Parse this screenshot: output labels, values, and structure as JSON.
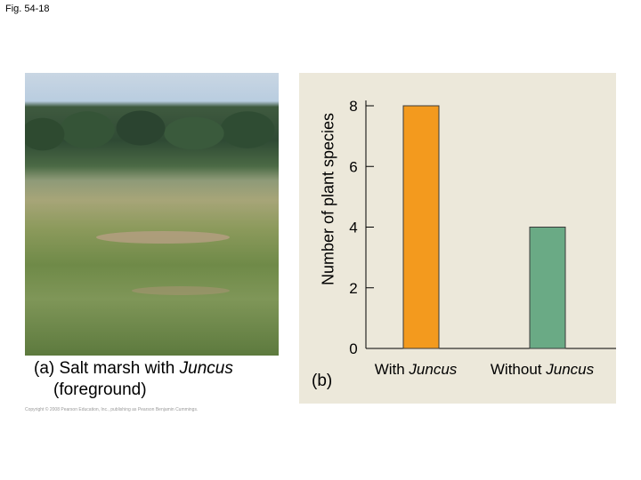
{
  "figure": {
    "label": "Fig. 54-18",
    "photo_caption_line1": "(a) Salt marsh with ",
    "photo_caption_italic": "Juncus",
    "photo_caption_line2": "(foreground)",
    "chart_caption": "(b)",
    "copyright": "Copyright © 2008 Pearson Education, Inc., publishing as Pearson Benjamin Cummings."
  },
  "chart_data": {
    "type": "bar",
    "categories": [
      "With Juncus",
      "Without Juncus"
    ],
    "category_labels": [
      {
        "prefix": "With ",
        "italic": "Juncus"
      },
      {
        "prefix": "Without ",
        "italic": "Juncus"
      }
    ],
    "values": [
      8,
      4
    ],
    "bar_colors": [
      "#f39a1e",
      "#6aaa85"
    ],
    "ylabel": "Number of plant species",
    "xlabel": "",
    "ylim": [
      0,
      8
    ],
    "yticks": [
      0,
      2,
      4,
      6,
      8
    ],
    "grid": false
  }
}
